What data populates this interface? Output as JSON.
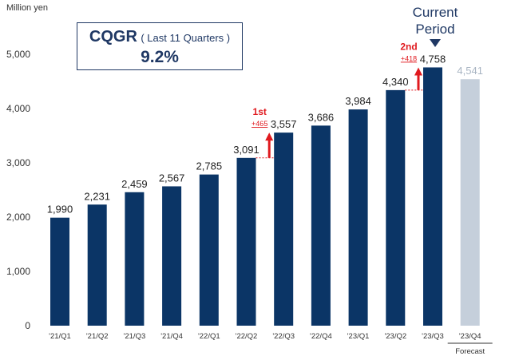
{
  "unit_label": "Million yen",
  "cqgr": {
    "title": "CQGR",
    "period": "( Last 11 Quarters )",
    "value": "9.2%"
  },
  "current_period": {
    "line1": "Current",
    "line2": "Period"
  },
  "forecast_label": "Forecast",
  "colors": {
    "bar": "#0b3566",
    "forecast_bar": "#c5cfdb",
    "forecast_text": "#a9b5c3",
    "highlight": "#e0191e"
  },
  "chart_data": {
    "type": "bar",
    "categories": [
      "'21/Q1",
      "'21/Q2",
      "'21/Q3",
      "'21/Q4",
      "'22/Q1",
      "'22/Q2",
      "'22/Q3",
      "'22/Q4",
      "'23/Q1",
      "'23/Q2",
      "'23/Q3",
      "'23/Q4"
    ],
    "values": [
      1990,
      2231,
      2459,
      2567,
      2785,
      3091,
      3557,
      3686,
      3984,
      4340,
      4758,
      4541
    ],
    "value_labels": [
      "1,990",
      "2,231",
      "2,459",
      "2,567",
      "2,785",
      "3,091",
      "3,557",
      "3,686",
      "3,984",
      "4,340",
      "4,758",
      "4,541"
    ],
    "forecast_index": 11,
    "ylim": [
      0,
      5000
    ],
    "yticks": [
      0,
      1000,
      2000,
      3000,
      4000,
      5000
    ],
    "ytick_labels": [
      "0",
      "1,000",
      "2,000",
      "3,000",
      "4,000",
      "5,000"
    ],
    "grid": false,
    "annotations": [
      {
        "from_index": 5,
        "to_index": 6,
        "label": "1st",
        "delta": "+465"
      },
      {
        "from_index": 9,
        "to_index": 10,
        "label": "2nd",
        "delta": "+418"
      }
    ]
  }
}
